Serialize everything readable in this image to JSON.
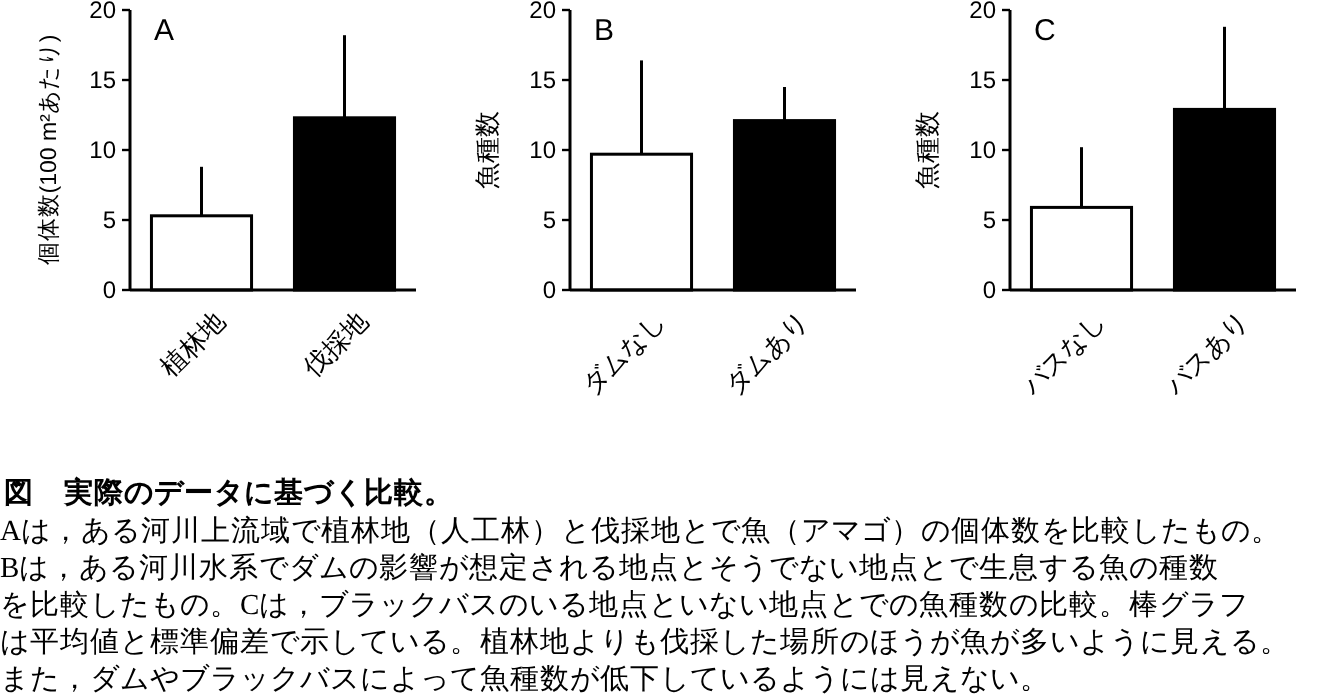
{
  "chart_data": [
    {
      "type": "bar",
      "title": "A",
      "ylabel": "個体数(100 m²あたり)",
      "categories": [
        "植林地",
        "伐採地"
      ],
      "values": [
        5.3,
        12.3
      ],
      "colors": [
        "#ffffff",
        "#000000"
      ],
      "errors": [
        [
          5.3,
          8.8
        ],
        [
          12.3,
          18.2
        ]
      ],
      "ylim": [
        0,
        20
      ],
      "yticks": [
        0,
        5,
        10,
        15,
        20
      ]
    },
    {
      "type": "bar",
      "title": "B",
      "ylabel": "魚種数",
      "categories": [
        "ダムなし",
        "ダムあり"
      ],
      "values": [
        9.7,
        12.1
      ],
      "colors": [
        "#ffffff",
        "#000000"
      ],
      "errors": [
        [
          9.7,
          16.4
        ],
        [
          12.1,
          14.5
        ]
      ],
      "ylim": [
        0,
        20
      ],
      "yticks": [
        0,
        5,
        10,
        15,
        20
      ]
    },
    {
      "type": "bar",
      "title": "C",
      "ylabel": "魚種数",
      "categories": [
        "バスなし",
        "バスあり"
      ],
      "values": [
        5.9,
        12.9
      ],
      "colors": [
        "#ffffff",
        "#000000"
      ],
      "errors": [
        [
          5.9,
          10.2
        ],
        [
          12.9,
          18.8
        ]
      ],
      "ylim": [
        0,
        20
      ],
      "yticks": [
        0,
        5,
        10,
        15,
        20
      ]
    },
    {
      "type": "other",
      "title": "図　実際のデータに基づく比較。",
      "annotations": [
        "Aは，ある河川上流域で植林地（人工林）と伐採地とで魚（アマゴ）の個体数を比較したもの。",
        "Bは，ある河川水系でダムの影響が想定される地点とそうでない地点とで生息する魚の種数",
        "を比較したもの。Cは，ブラックバスのいる地点といない地点とでの魚種数の比較。棒グラフ",
        "は平均値と標準偏差で示している。植林地よりも伐採した場所のほうが魚が多いように見える。",
        "また，ダムやブラックバスによって魚種数が低下しているようには見えない。"
      ]
    }
  ]
}
